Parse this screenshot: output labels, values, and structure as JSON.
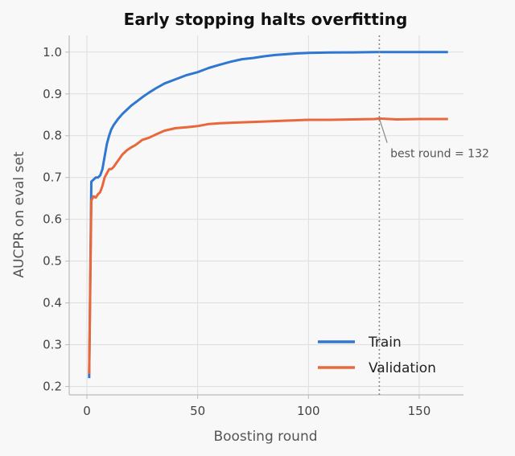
{
  "chart_data": {
    "type": "line",
    "title": "Early stopping halts overfitting",
    "xlabel": "Boosting round",
    "ylabel": "AUCPR on eval set",
    "xlim": [
      -8,
      170
    ],
    "ylim": [
      0.18,
      1.04
    ],
    "xticks": [
      0,
      50,
      100,
      150
    ],
    "yticks": [
      0.2,
      0.3,
      0.4,
      0.5,
      0.6,
      0.7,
      0.8,
      0.9,
      1.0
    ],
    "grid": true,
    "legend_position": "lower-right",
    "series": [
      {
        "name": "Train",
        "color": "#2f77d0",
        "x": [
          1,
          2,
          3,
          4,
          5,
          6,
          7,
          8,
          9,
          10,
          11,
          12,
          14,
          16,
          18,
          20,
          22,
          25,
          28,
          31,
          35,
          40,
          45,
          50,
          55,
          60,
          65,
          70,
          75,
          80,
          85,
          90,
          95,
          100,
          110,
          120,
          130,
          140,
          150,
          163
        ],
        "y": [
          0.22,
          0.69,
          0.695,
          0.7,
          0.7,
          0.705,
          0.72,
          0.75,
          0.78,
          0.8,
          0.815,
          0.825,
          0.84,
          0.852,
          0.862,
          0.872,
          0.88,
          0.892,
          0.903,
          0.913,
          0.925,
          0.935,
          0.945,
          0.952,
          0.962,
          0.97,
          0.977,
          0.983,
          0.986,
          0.99,
          0.993,
          0.995,
          0.997,
          0.998,
          0.999,
          0.9995,
          1.0,
          1.0,
          1.0,
          1.0
        ]
      },
      {
        "name": "Validation",
        "color": "#e8683c",
        "x": [
          1,
          2,
          3,
          4,
          5,
          6,
          7,
          8,
          9,
          10,
          11,
          12,
          14,
          16,
          18,
          20,
          22,
          25,
          28,
          30,
          32,
          35,
          40,
          45,
          50,
          55,
          60,
          70,
          80,
          90,
          100,
          110,
          120,
          130,
          132,
          140,
          150,
          163
        ],
        "y": [
          0.23,
          0.645,
          0.655,
          0.652,
          0.66,
          0.665,
          0.68,
          0.7,
          0.71,
          0.72,
          0.72,
          0.725,
          0.74,
          0.755,
          0.765,
          0.772,
          0.778,
          0.79,
          0.795,
          0.8,
          0.805,
          0.812,
          0.818,
          0.82,
          0.823,
          0.828,
          0.83,
          0.832,
          0.834,
          0.836,
          0.838,
          0.838,
          0.839,
          0.84,
          0.841,
          0.839,
          0.84,
          0.84
        ]
      }
    ],
    "annotations": [
      {
        "text": "best round = 132",
        "x": 132,
        "y": 0.841,
        "text_x": 137,
        "text_y": 0.756
      }
    ],
    "vline": {
      "x": 132,
      "style": "dotted",
      "color": "#888888"
    }
  }
}
